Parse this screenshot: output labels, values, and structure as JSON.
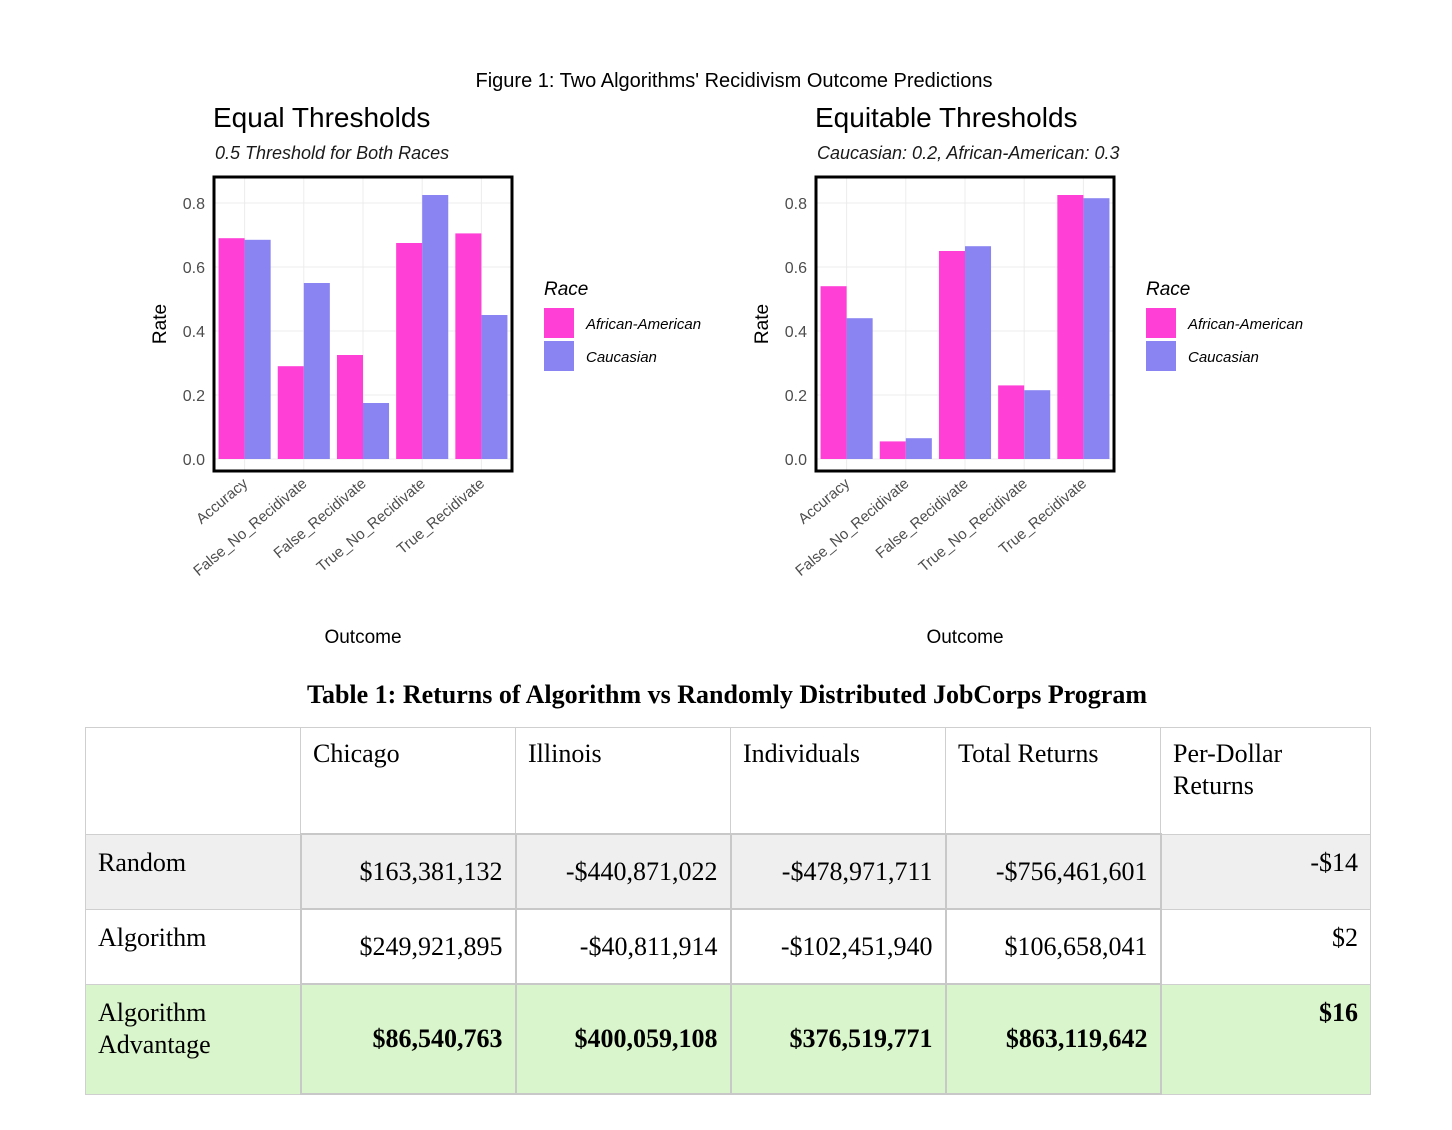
{
  "figure_title": "Figure 1: Two Algorithms' Recidivism Outcome Predictions",
  "chart_data": [
    {
      "type": "bar",
      "title": "Equal Thresholds",
      "subtitle": "0.5 Threshold for Both Races",
      "xlabel": "Outcome",
      "ylabel": "Rate",
      "ylim": [
        0,
        0.85
      ],
      "yticks": [
        "0.0",
        "0.2",
        "0.4",
        "0.6",
        "0.8"
      ],
      "categories": [
        "Accuracy",
        "False_No_Recidivate",
        "False_Recidivate",
        "True_No_Recidivate",
        "True_Recidivate"
      ],
      "series": [
        {
          "name": "African-American",
          "color": "#ff3fd6",
          "values": [
            0.69,
            0.29,
            0.325,
            0.675,
            0.705
          ]
        },
        {
          "name": "Caucasian",
          "color": "#8a84f2",
          "values": [
            0.685,
            0.55,
            0.175,
            0.825,
            0.45
          ]
        }
      ],
      "legend": {
        "title": "Race",
        "position": "right"
      }
    },
    {
      "type": "bar",
      "title": "Equitable Thresholds",
      "subtitle": "Caucasian: 0.2, African-American: 0.3",
      "xlabel": "Outcome",
      "ylabel": "Rate",
      "ylim": [
        0,
        0.85
      ],
      "yticks": [
        "0.0",
        "0.2",
        "0.4",
        "0.6",
        "0.8"
      ],
      "categories": [
        "Accuracy",
        "False_No_Recidivate",
        "False_Recidivate",
        "True_No_Recidivate",
        "True_Recidivate"
      ],
      "series": [
        {
          "name": "African-American",
          "color": "#ff3fd6",
          "values": [
            0.54,
            0.055,
            0.65,
            0.23,
            0.825
          ]
        },
        {
          "name": "Caucasian",
          "color": "#8a84f2",
          "values": [
            0.44,
            0.065,
            0.665,
            0.215,
            0.815
          ]
        }
      ],
      "legend": {
        "title": "Race",
        "position": "right"
      }
    }
  ],
  "table": {
    "title": "Table 1: Returns of Algorithm vs Randomly Distributed JobCorps Program",
    "headers": [
      "",
      "Chicago",
      "Illinois",
      "Individuals",
      "Total Returns",
      "Per-Dollar Returns"
    ],
    "rows": [
      {
        "label": "Random",
        "values": [
          "$163,381,132",
          "-$440,871,022",
          "-$478,971,711",
          "-$756,461,601",
          "-$14"
        ]
      },
      {
        "label": "Algorithm",
        "values": [
          "$249,921,895",
          "-$40,811,914",
          "-$102,451,940",
          "$106,658,041",
          "$2"
        ]
      },
      {
        "label": "Algorithm Advantage",
        "values": [
          "$86,540,763",
          "$400,059,108",
          "$376,519,771",
          "$863,119,642",
          "$16"
        ]
      }
    ]
  }
}
